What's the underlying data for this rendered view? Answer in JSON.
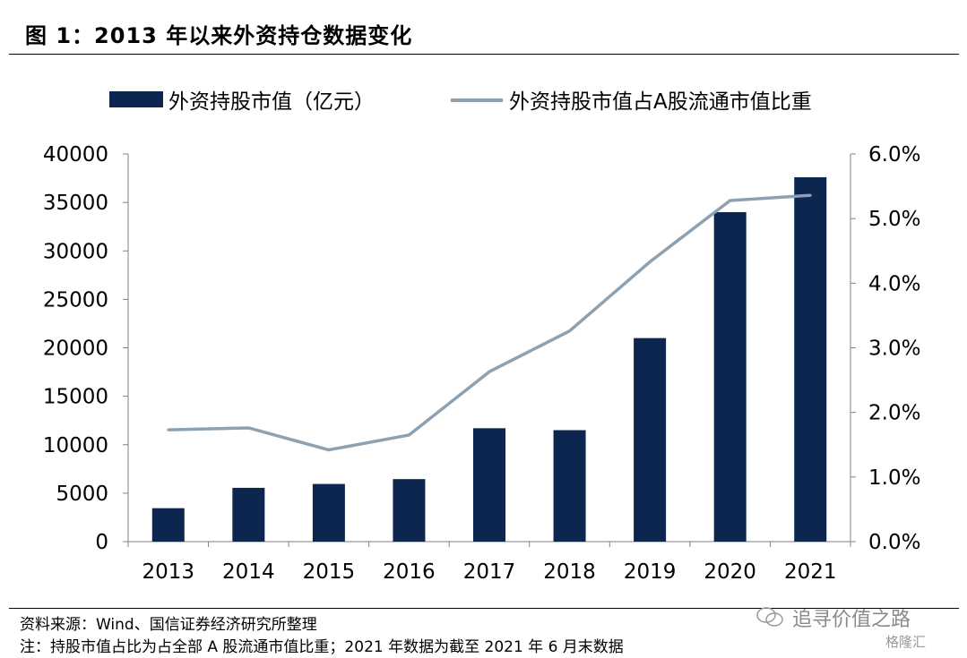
{
  "header": {
    "title": "图 1：2013 年以来外资持仓数据变化"
  },
  "footer": {
    "source": "资料来源：Wind、国信证券经济研究所整理",
    "note": "注：持股市值占比为占全部 A 股流通市值比重；2021 年数据为截至 2021 年 6 月末数据"
  },
  "watermark": {
    "text": "追寻价值之路",
    "small": "格隆汇",
    "icon": "wechat-icon"
  },
  "colors": {
    "bar": "#0d2650",
    "line": "#8ea1b1",
    "axis": "#808080"
  },
  "chart_data": {
    "type": "bar",
    "categories": [
      "2013",
      "2014",
      "2015",
      "2016",
      "2017",
      "2018",
      "2019",
      "2020",
      "2021"
    ],
    "series": [
      {
        "name": "外资持股市值（亿元）",
        "type": "bar",
        "axis": "left",
        "values": [
          3450,
          5550,
          5950,
          6450,
          11700,
          11500,
          21000,
          34000,
          37600
        ]
      },
      {
        "name": "外资持股市值占A股流通市值比重",
        "type": "line",
        "axis": "right",
        "values": [
          1.73,
          1.76,
          1.42,
          1.65,
          2.63,
          3.26,
          4.33,
          5.28,
          5.36
        ]
      }
    ],
    "left_axis": {
      "min": 0,
      "max": 40000,
      "ticks": [
        "0",
        "5000",
        "10000",
        "15000",
        "20000",
        "25000",
        "30000",
        "35000",
        "40000"
      ]
    },
    "right_axis": {
      "min": 0,
      "max": 6,
      "ticks": [
        "0.0%",
        "1.0%",
        "2.0%",
        "3.0%",
        "4.0%",
        "5.0%",
        "6.0%"
      ]
    },
    "legend_position": "top",
    "grid": false
  }
}
